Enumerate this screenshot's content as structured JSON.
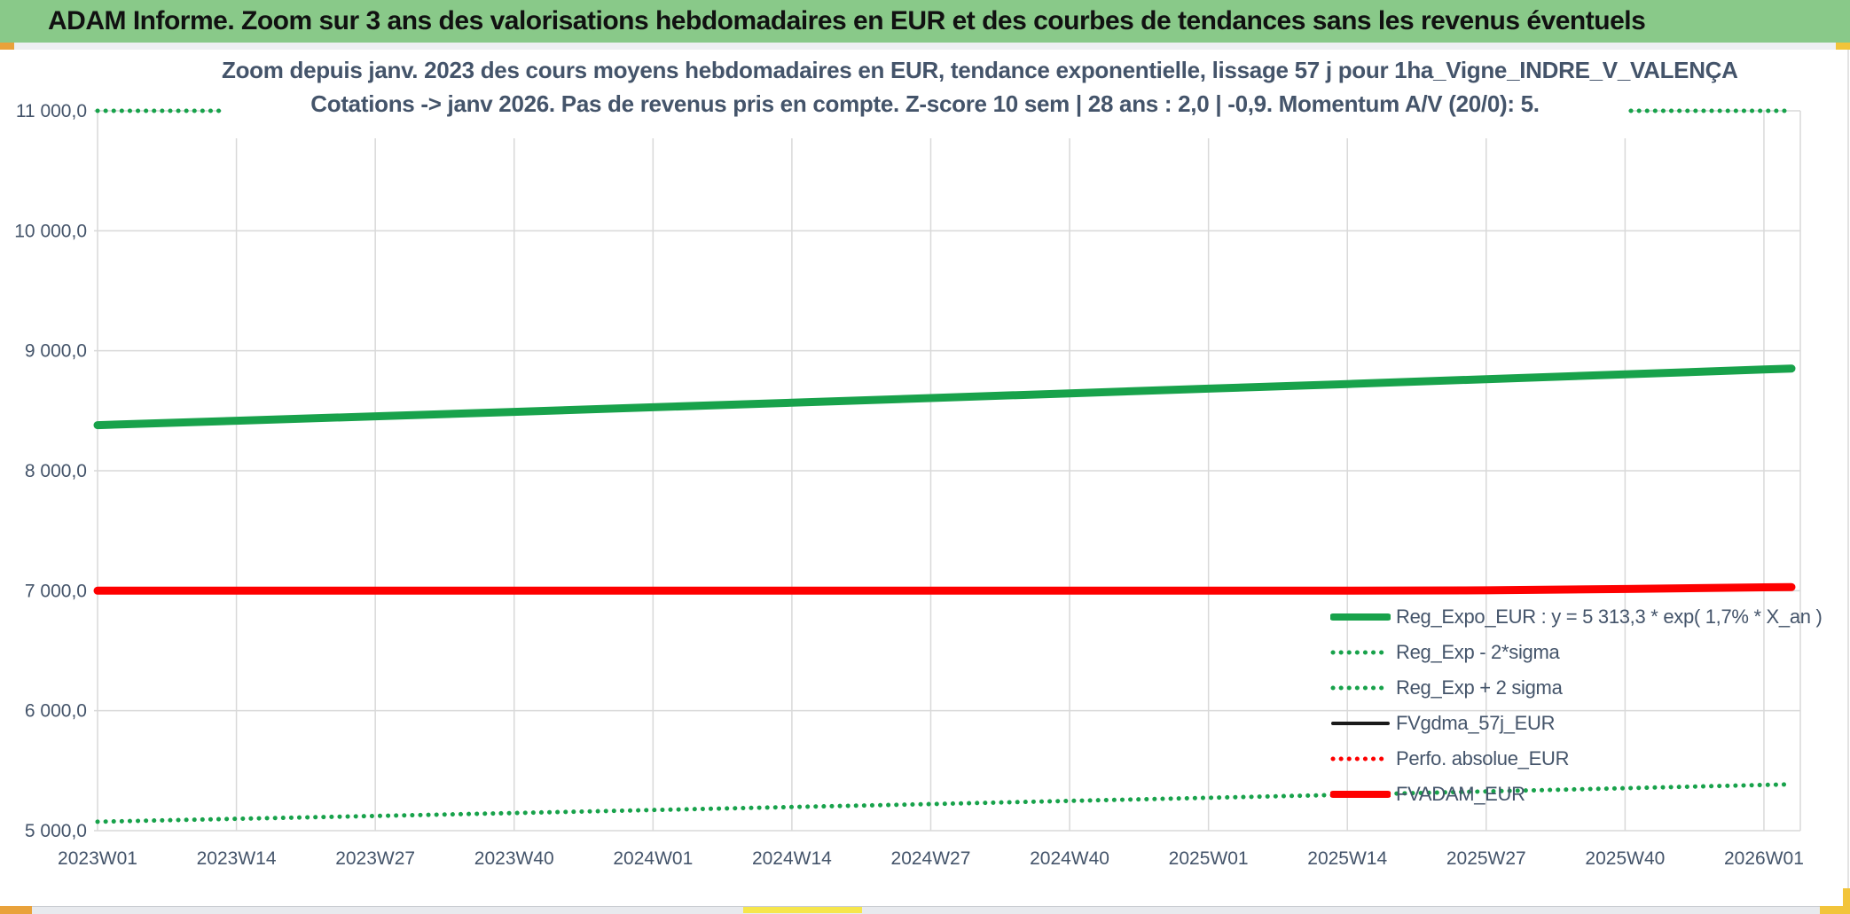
{
  "header": {
    "title": "ADAM Informe. Zoom sur 3 ans des valorisations hebdomadaires en EUR et des courbes de tendances sans les revenus éventuels",
    "background_color": "#89c989"
  },
  "chart_data": {
    "type": "line",
    "title": "Zoom depuis janv. 2023 des cours moyens hebdomadaires en EUR, tendance exponentielle, lissage 57 j pour 1ha_Vigne_INDRE_V_VALENÇA",
    "subtitle": "Cotations -> janv 2026. Pas de revenus pris en compte. Z-score 10 sem | 28 ans : 2,0 | -0,9. Momentum A/V (20/0): 5.",
    "title_color": "#44546a",
    "xlabel": "",
    "ylabel": "",
    "ylim": [
      5000,
      11000
    ],
    "grid": true,
    "gridline_color": "#d9d9d9",
    "legend_position": "inside-bottom-right",
    "categories": [
      "2023W01",
      "2023W14",
      "2023W27",
      "2023W40",
      "2024W01",
      "2024W14",
      "2024W27",
      "2024W40",
      "2025W01",
      "2025W14",
      "2025W27",
      "2025W40",
      "2026W01"
    ],
    "y_ticks": [
      {
        "value": 5000,
        "label": "5 000,0"
      },
      {
        "value": 6000,
        "label": "6 000,0"
      },
      {
        "value": 7000,
        "label": "7 000,0"
      },
      {
        "value": 8000,
        "label": "8 000,0"
      },
      {
        "value": 9000,
        "label": "9 000,0"
      },
      {
        "value": 10000,
        "label": "10 000,0"
      },
      {
        "value": 11000,
        "label": "11 000,0"
      }
    ],
    "axis_label_color": "#44546a",
    "series": [
      {
        "name": "Reg_Expo_EUR",
        "legend_label": "Reg_Expo_EUR : y = 5 313,3 * exp( 1,7% *  X_an )",
        "color": "#18a24b",
        "style": "solid",
        "weight": 9,
        "values": [
          8380,
          8417,
          8454,
          8491,
          8529,
          8567,
          8606,
          8645,
          8684,
          8723,
          8763,
          8803,
          8844
        ]
      },
      {
        "name": "Reg_Exp - 2*sigma",
        "legend_label": "Reg_Exp - 2*sigma",
        "color": "#18a24b",
        "style": "dotted",
        "weight": 5,
        "values": [
          5075,
          5099,
          5123,
          5147,
          5172,
          5197,
          5222,
          5248,
          5274,
          5300,
          5327,
          5354,
          5381
        ]
      },
      {
        "name": "Reg_Exp + 2 sigma",
        "legend_label": "Reg_Exp + 2 sigma",
        "color": "#18a24b",
        "style": "dotted",
        "weight": 5,
        "clipped_at_ymax": true,
        "values": [
          11000,
          11000,
          11000,
          11000,
          11000,
          11000,
          11000,
          11000,
          11000,
          11000,
          11000,
          11000,
          11000
        ]
      },
      {
        "name": "FVgdma_57j_EUR",
        "legend_label": "FVgdma_57j_EUR",
        "color": "#1a1a1a",
        "style": "solid",
        "weight": 4,
        "visible_in_plot": false,
        "values": []
      },
      {
        "name": "Perfo. absolue_EUR",
        "legend_label": "Perfo. absolue_EUR",
        "color": "#fe0000",
        "style": "dotted",
        "weight": 5,
        "visible_in_plot": false,
        "values": []
      },
      {
        "name": "FVADAM_EUR",
        "legend_label": "FVADAM_EUR",
        "color": "#fe0000",
        "style": "solid",
        "weight": 9,
        "values": [
          7000,
          7000,
          7000,
          7000,
          7000,
          7000,
          7000,
          7000,
          7000,
          7000,
          7003,
          7014,
          7028
        ]
      }
    ]
  },
  "decor": {
    "corner_orange": "#e9a23b",
    "corner_yellow": "#f2c43a",
    "scroll_yellow": "#f6e64b",
    "strip_gray": "#e8eaee"
  }
}
